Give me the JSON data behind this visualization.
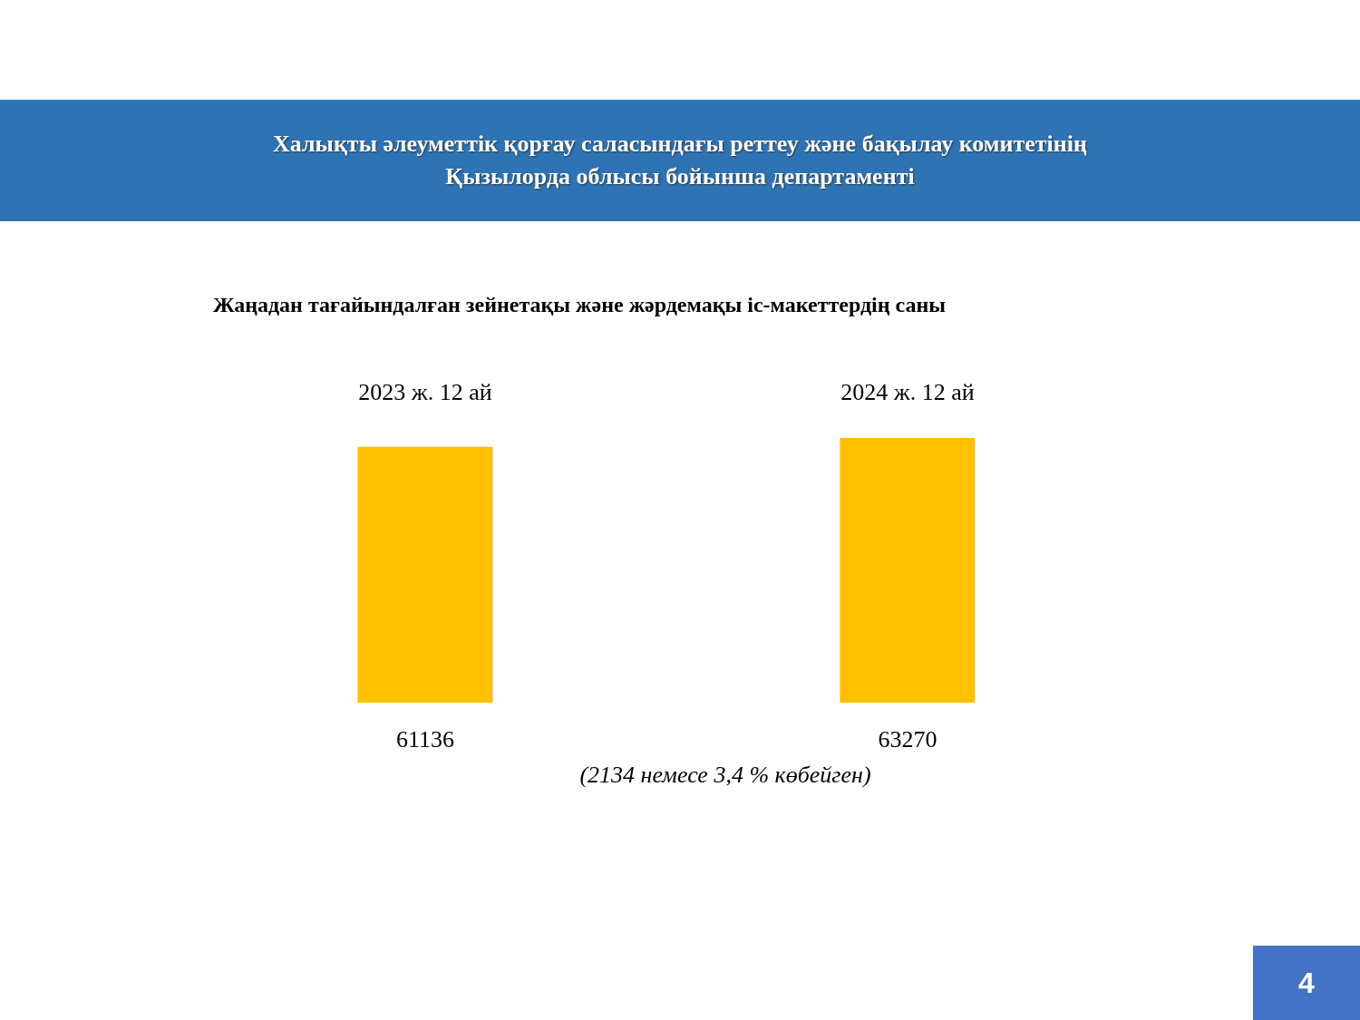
{
  "chart_data": {
    "type": "bar",
    "title": "Халықты әлеуметтік қорғау саласындағы реттеу және бақылау комитетінің\nҚызылорда облысы бойынша департаменті",
    "subtitle": "Жаңадан тағайындалған зейнетақы және жәрдемақы іс-макеттердің саны",
    "categories": [
      "2023 ж. 12 ай",
      "2024 ж. 12 ай"
    ],
    "values": [
      61136,
      63270
    ],
    "color": "#ffc000",
    "data_labels": true,
    "annotations": [
      "(2134 немесе 3,4 % көбейген)",
      "4"
    ]
  }
}
